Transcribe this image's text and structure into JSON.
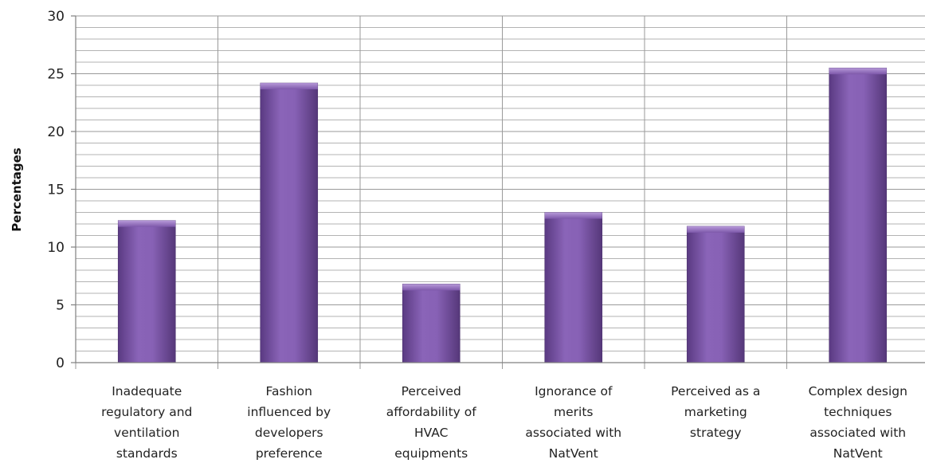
{
  "chart_data": {
    "type": "bar",
    "title": "",
    "xlabel": "",
    "ylabel": "Percentages",
    "ylim": [
      0,
      30
    ],
    "y_ticks": [
      0,
      5,
      10,
      15,
      20,
      25,
      30
    ],
    "y_minor_step": 1,
    "grid": true,
    "legend": "none",
    "bar_color": "#7b55a8",
    "categories": [
      [
        "Inadequate",
        "regulatory and",
        "ventilation",
        "standards"
      ],
      [
        "Fashion",
        "influenced by",
        "developers",
        "preference"
      ],
      [
        "Perceived",
        "affordability of",
        "HVAC",
        "equipments"
      ],
      [
        "Ignorance of",
        "merits",
        "associated with",
        "NatVent"
      ],
      [
        "Perceived as a",
        "marketing",
        "strategy"
      ],
      [
        "Complex design",
        "techniques",
        "associated with",
        "NatVent"
      ]
    ],
    "values": [
      12.3,
      24.2,
      6.8,
      13.0,
      11.8,
      25.5
    ]
  }
}
